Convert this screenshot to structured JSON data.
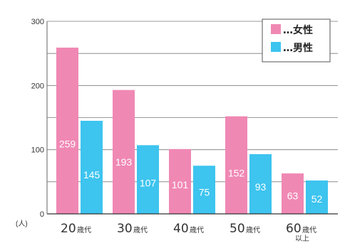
{
  "chart_data": {
    "type": "bar",
    "categories": [
      "20歳代",
      "30歳代",
      "40歳代",
      "50歳代",
      "60歳代以上"
    ],
    "category_labels": [
      {
        "main": "20",
        "suffix_lines": [
          "歳代"
        ]
      },
      {
        "main": "30",
        "suffix_lines": [
          "歳代"
        ]
      },
      {
        "main": "40",
        "suffix_lines": [
          "歳代"
        ]
      },
      {
        "main": "50",
        "suffix_lines": [
          "歳代"
        ]
      },
      {
        "main": "60",
        "suffix_lines": [
          "歳代",
          "以上"
        ]
      }
    ],
    "series": [
      {
        "name": "女性",
        "legend_label": "…女性",
        "color": "#f088b4",
        "values": [
          259,
          193,
          101,
          152,
          63
        ]
      },
      {
        "name": "男性",
        "legend_label": "…男性",
        "color": "#3dc4ef",
        "values": [
          145,
          107,
          75,
          93,
          52
        ]
      }
    ],
    "y_unit_label": "(人)",
    "yticks": [
      0,
      100,
      200,
      300
    ],
    "ylim": [
      0,
      300
    ],
    "grid": true,
    "grid_step": 50,
    "legend_position": "top-right",
    "title": "",
    "xlabel": "",
    "ylabel": ""
  }
}
